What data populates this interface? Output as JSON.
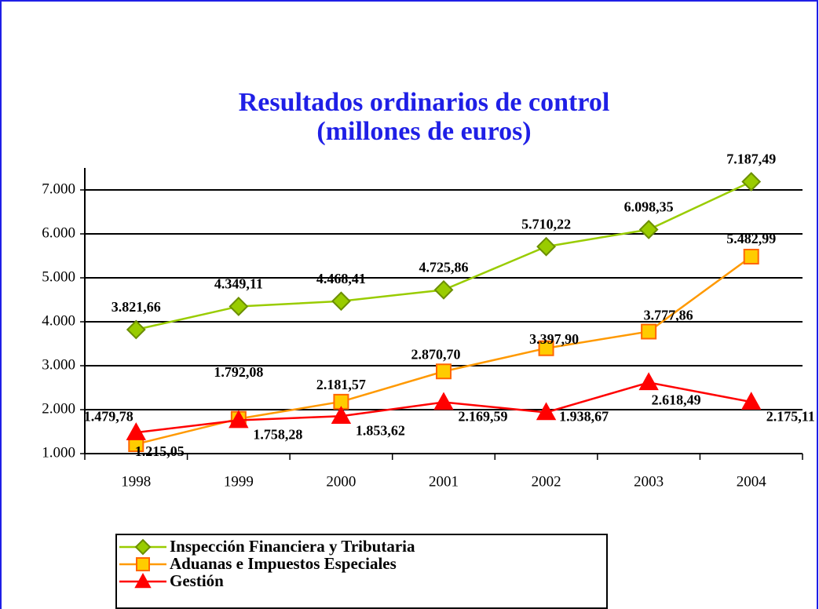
{
  "chart_data": {
    "type": "line",
    "title": [
      "Resultados ordinarios de control",
      "(millones de euros)"
    ],
    "categories": [
      "1998",
      "1999",
      "2000",
      "2001",
      "2002",
      "2003",
      "2004"
    ],
    "ylim": [
      1000,
      7500
    ],
    "yticks": [
      {
        "value": 1000,
        "label": "1.000"
      },
      {
        "value": 2000,
        "label": "2.000"
      },
      {
        "value": 3000,
        "label": "3.000"
      },
      {
        "value": 4000,
        "label": "4.000"
      },
      {
        "value": 5000,
        "label": "5.000"
      },
      {
        "value": 6000,
        "label": "6.000"
      },
      {
        "value": 7000,
        "label": "7.000"
      }
    ],
    "grid": true,
    "series": [
      {
        "name": "Inspección Financiera y Tributaria",
        "color": "#99cc00",
        "marker": "diamond",
        "values": [
          3821.66,
          4349.11,
          4468.41,
          4725.86,
          5710.22,
          6098.35,
          7187.49
        ],
        "value_labels": [
          "3.821,66",
          "4.349,11",
          "4.468,41",
          "4.725,86",
          "5.710,22",
          "6.098,35",
          "7.187,49"
        ]
      },
      {
        "name": "Aduanas e Impuestos Especiales",
        "color": "#ff9900",
        "marker": "square",
        "values": [
          1215.05,
          1792.08,
          2181.57,
          2870.7,
          3397.9,
          3777.86,
          5482.99
        ],
        "value_labels": [
          "1.215,05",
          "1.792,08",
          "2.181,57",
          "2.870,70",
          "3.397,90",
          "3.777,86",
          "5.482,99"
        ]
      },
      {
        "name": "Gestión",
        "color": "#ff0000",
        "marker": "triangle",
        "values": [
          1479.78,
          1758.28,
          1853.62,
          2169.59,
          1938.67,
          2618.49,
          2175.11
        ],
        "value_labels": [
          "1.479,78",
          "1.758,28",
          "1.853,62",
          "2.169,59",
          "1.938,67",
          "2.618,49",
          "2.175,11"
        ]
      }
    ]
  }
}
